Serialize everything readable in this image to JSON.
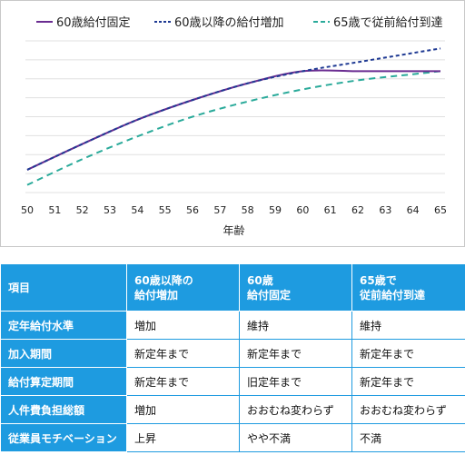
{
  "chart_data": {
    "type": "line",
    "xlabel": "年齢",
    "x": [
      50,
      51,
      52,
      53,
      54,
      55,
      56,
      57,
      58,
      59,
      60,
      61,
      62,
      63,
      64,
      65
    ],
    "xlim": [
      50,
      65
    ],
    "ylim": [
      0,
      10
    ],
    "grid": true,
    "legend_position": "top",
    "series": [
      {
        "name": "60歳給付固定",
        "color": "#6a2c91",
        "style": "solid",
        "x": [
          50,
          52,
          54,
          56,
          58,
          60,
          62,
          64,
          65
        ],
        "y": [
          1.5,
          3.2,
          4.8,
          6.1,
          7.2,
          8.0,
          8.0,
          8.0,
          8.0
        ]
      },
      {
        "name": "60歳以降の給付増加",
        "color": "#1f3a93",
        "style": "dashed",
        "x": [
          50,
          52,
          54,
          56,
          58,
          60,
          62,
          64,
          65
        ],
        "y": [
          1.5,
          3.2,
          4.8,
          6.1,
          7.2,
          8.0,
          8.6,
          9.2,
          9.5
        ]
      },
      {
        "name": "65歳で従前給付到達",
        "color": "#2aaa9a",
        "style": "dashed",
        "x": [
          50,
          52,
          54,
          56,
          58,
          60,
          62,
          64,
          65
        ],
        "y": [
          0.5,
          2.2,
          3.7,
          5.0,
          6.0,
          6.8,
          7.4,
          7.8,
          8.0
        ]
      }
    ]
  },
  "table": {
    "headers": [
      "項目",
      "60歳以降の\n給付増加",
      "60歳\n給付固定",
      "65歳で\n従前給付到達"
    ],
    "rows": [
      [
        "定年給付水準",
        "増加",
        "維持",
        "維持"
      ],
      [
        "加入期間",
        "新定年まで",
        "新定年まで",
        "新定年まで"
      ],
      [
        "給付算定期間",
        "新定年まで",
        "旧定年まで",
        "新定年まで"
      ],
      [
        "人件費負担総額",
        "増加",
        "おおむね変わらず",
        "おおむね変わらず"
      ],
      [
        "従業員モチベーション",
        "上昇",
        "やや不満",
        "不満"
      ]
    ]
  }
}
